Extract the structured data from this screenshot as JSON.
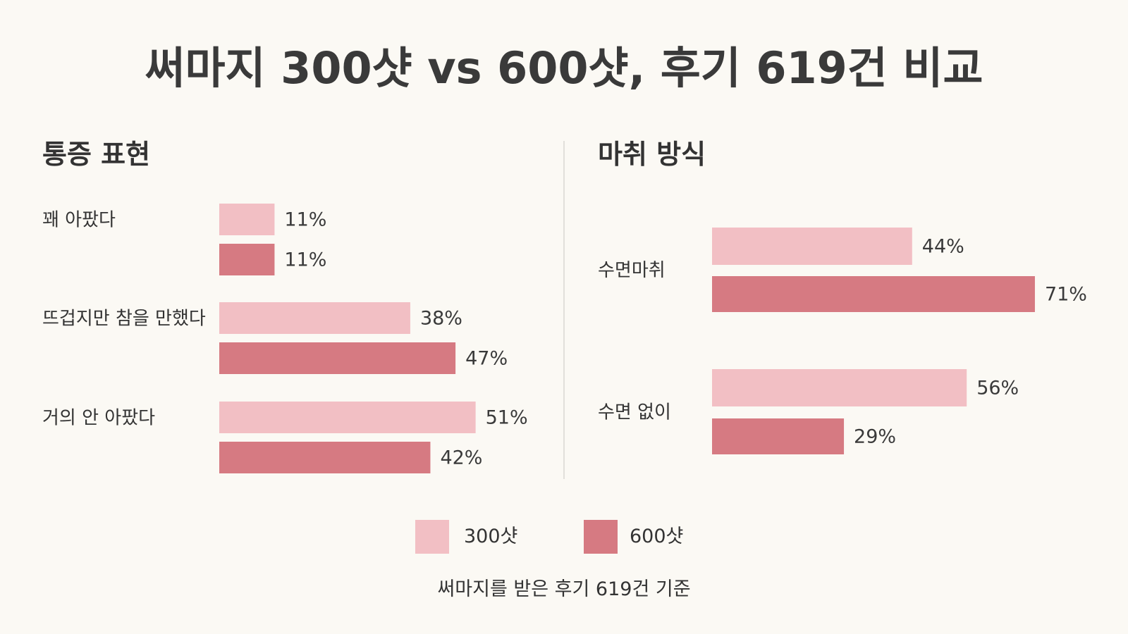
{
  "title": "써마지 300샷 vs 600샷, 후기 619건 비교",
  "footnote": "써마지를 받은 후기 619건 기준",
  "colors": {
    "s300": "#f2bfc4",
    "s600": "#d67a82",
    "divider": "#e2dfda",
    "background": "#fbf9f4"
  },
  "legend": [
    {
      "label": "300샷",
      "color": "#f2bfc4"
    },
    {
      "label": "600샷",
      "color": "#d67a82"
    }
  ],
  "chart_data": [
    {
      "type": "bar",
      "orientation": "horizontal",
      "title": "통증 표현",
      "categories": [
        "꽤 아팠다",
        "뜨겁지만 참을 만했다",
        "거의 안 아팠다"
      ],
      "series": [
        {
          "name": "300샷",
          "values": [
            11,
            38,
            51
          ],
          "labels": [
            "11%",
            "38%",
            "51%"
          ]
        },
        {
          "name": "600샷",
          "values": [
            11,
            47,
            42
          ],
          "labels": [
            "11%",
            "47%",
            "42%"
          ]
        }
      ],
      "unit": "%",
      "xlim": [
        0,
        100
      ],
      "grid": false
    },
    {
      "type": "bar",
      "orientation": "horizontal",
      "title": "마취 방식",
      "categories": [
        "수면마취",
        "수면 없이"
      ],
      "series": [
        {
          "name": "300샷",
          "values": [
            44,
            56
          ],
          "labels": [
            "44%",
            "56%"
          ]
        },
        {
          "name": "600샷",
          "values": [
            71,
            29
          ],
          "labels": [
            "71%",
            "29%"
          ]
        }
      ],
      "unit": "%",
      "xlim": [
        0,
        100
      ],
      "grid": false
    }
  ]
}
